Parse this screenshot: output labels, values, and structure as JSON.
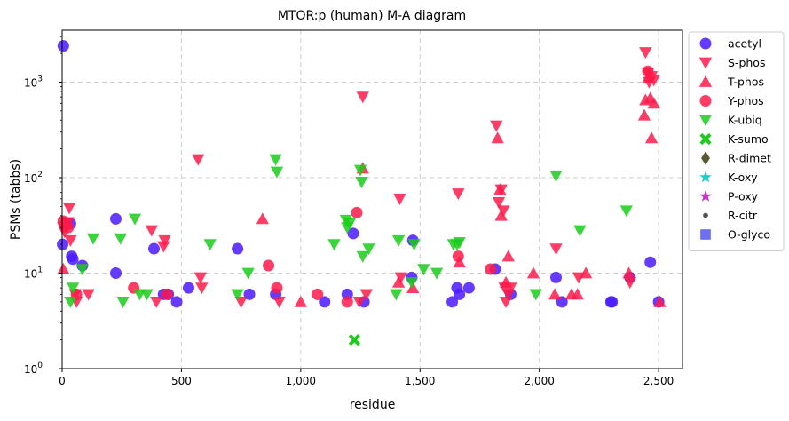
{
  "chart_data": {
    "type": "scatter",
    "title": "MTOR:p (human) M-A diagram",
    "xlabel": "residue",
    "ylabel": "PSMs (tabbs)",
    "xlim": [
      0,
      2600
    ],
    "ylim": [
      1,
      3500
    ],
    "yscale": "log",
    "grid": true,
    "legend_position": "outside-right",
    "x_ticks": [
      {
        "value": 0,
        "label": "0"
      },
      {
        "value": 500,
        "label": "500"
      },
      {
        "value": 1000,
        "label": "1,000"
      },
      {
        "value": 1500,
        "label": "1,500"
      },
      {
        "value": 2000,
        "label": "2,000"
      },
      {
        "value": 2500,
        "label": "2,500"
      }
    ],
    "y_ticks": [
      {
        "value": 1,
        "base": "10",
        "exp": "0"
      },
      {
        "value": 10,
        "base": "10",
        "exp": "1"
      },
      {
        "value": 100,
        "base": "10",
        "exp": "2"
      },
      {
        "value": 1000,
        "base": "10",
        "exp": "3"
      }
    ],
    "series": [
      {
        "name": "acetyl",
        "marker": "circle",
        "color": "#4a1aff",
        "points": [
          [
            5,
            2400
          ],
          [
            2,
            20
          ],
          [
            35,
            33
          ],
          [
            40,
            15
          ],
          [
            45,
            14
          ],
          [
            85,
            12
          ],
          [
            225,
            37
          ],
          [
            225,
            10
          ],
          [
            385,
            18
          ],
          [
            425,
            6
          ],
          [
            445,
            6
          ],
          [
            480,
            5
          ],
          [
            530,
            7
          ],
          [
            735,
            18
          ],
          [
            785,
            6
          ],
          [
            895,
            6
          ],
          [
            1100,
            5
          ],
          [
            1195,
            6
          ],
          [
            1220,
            26
          ],
          [
            1265,
            5
          ],
          [
            1470,
            22
          ],
          [
            1465,
            9
          ],
          [
            1635,
            5
          ],
          [
            1655,
            7
          ],
          [
            1665,
            6
          ],
          [
            1705,
            7
          ],
          [
            1815,
            11
          ],
          [
            1880,
            6
          ],
          [
            2070,
            9
          ],
          [
            2095,
            5
          ],
          [
            2300,
            5
          ],
          [
            2305,
            5
          ],
          [
            2380,
            9
          ],
          [
            2465,
            13
          ],
          [
            2500,
            5
          ]
        ]
      },
      {
        "name": "S-phos",
        "marker": "triangle-down",
        "color": "#ff1a4a",
        "points": [
          [
            5,
            30
          ],
          [
            10,
            27
          ],
          [
            25,
            34
          ],
          [
            30,
            48
          ],
          [
            35,
            22
          ],
          [
            55,
            6
          ],
          [
            60,
            5
          ],
          [
            110,
            6
          ],
          [
            375,
            28
          ],
          [
            395,
            5
          ],
          [
            425,
            19
          ],
          [
            430,
            22
          ],
          [
            570,
            155
          ],
          [
            580,
            9
          ],
          [
            585,
            7
          ],
          [
            750,
            5
          ],
          [
            910,
            5
          ],
          [
            1245,
            5
          ],
          [
            1260,
            700
          ],
          [
            1275,
            6
          ],
          [
            1415,
            60
          ],
          [
            1420,
            9
          ],
          [
            1660,
            68
          ],
          [
            1820,
            350
          ],
          [
            1830,
            55
          ],
          [
            1840,
            75
          ],
          [
            1850,
            45
          ],
          [
            1855,
            7
          ],
          [
            1860,
            5
          ],
          [
            1870,
            6
          ],
          [
            1880,
            7
          ],
          [
            2070,
            18
          ],
          [
            2165,
            9
          ],
          [
            2380,
            8
          ],
          [
            2445,
            2050
          ],
          [
            2455,
            1250
          ],
          [
            2460,
            1000
          ],
          [
            2470,
            1150
          ],
          [
            2480,
            1050
          ]
        ]
      },
      {
        "name": "T-phos",
        "marker": "triangle-up",
        "color": "#ff1a4a",
        "points": [
          [
            5,
            11
          ],
          [
            840,
            37
          ],
          [
            1000,
            5
          ],
          [
            1260,
            125
          ],
          [
            1410,
            8
          ],
          [
            1470,
            7
          ],
          [
            1665,
            13
          ],
          [
            1825,
            260
          ],
          [
            1835,
            75
          ],
          [
            1840,
            40
          ],
          [
            1860,
            8
          ],
          [
            1870,
            15
          ],
          [
            1975,
            10
          ],
          [
            2065,
            6
          ],
          [
            2135,
            6
          ],
          [
            2160,
            6
          ],
          [
            2195,
            10
          ],
          [
            2375,
            10
          ],
          [
            2440,
            450
          ],
          [
            2445,
            650
          ],
          [
            2455,
            1100
          ],
          [
            2465,
            680
          ],
          [
            2470,
            260
          ],
          [
            2480,
            600
          ],
          [
            2505,
            5
          ]
        ]
      },
      {
        "name": "Y-phos",
        "marker": "circle",
        "color": "#ff1a4a",
        "points": [
          [
            5,
            35
          ],
          [
            15,
            33
          ],
          [
            25,
            30
          ],
          [
            60,
            6
          ],
          [
            300,
            7
          ],
          [
            440,
            6
          ],
          [
            865,
            12
          ],
          [
            900,
            7
          ],
          [
            1070,
            6
          ],
          [
            1195,
            5
          ],
          [
            1235,
            43
          ],
          [
            1660,
            15
          ],
          [
            1795,
            11
          ],
          [
            2455,
            1300
          ]
        ]
      },
      {
        "name": "K-ubiq",
        "marker": "triangle-down",
        "color": "#1acc1a",
        "points": [
          [
            35,
            5
          ],
          [
            45,
            7
          ],
          [
            85,
            11
          ],
          [
            130,
            23
          ],
          [
            245,
            23
          ],
          [
            255,
            5
          ],
          [
            305,
            37
          ],
          [
            325,
            6
          ],
          [
            355,
            6
          ],
          [
            620,
            20
          ],
          [
            735,
            6
          ],
          [
            780,
            10
          ],
          [
            895,
            155
          ],
          [
            900,
            115
          ],
          [
            1140,
            20
          ],
          [
            1190,
            36
          ],
          [
            1195,
            30
          ],
          [
            1205,
            33
          ],
          [
            1250,
            120
          ],
          [
            1255,
            90
          ],
          [
            1260,
            15
          ],
          [
            1285,
            18
          ],
          [
            1410,
            22
          ],
          [
            1400,
            6
          ],
          [
            1465,
            8
          ],
          [
            1475,
            20
          ],
          [
            1515,
            11
          ],
          [
            1570,
            10
          ],
          [
            1640,
            20
          ],
          [
            1655,
            20
          ],
          [
            1665,
            21
          ],
          [
            1985,
            6
          ],
          [
            2070,
            105
          ],
          [
            2170,
            28
          ],
          [
            2365,
            45
          ]
        ]
      },
      {
        "name": "K-sumo",
        "marker": "x",
        "color": "#1acc1a",
        "points": [
          [
            1225,
            2
          ]
        ]
      },
      {
        "name": "R-dimet",
        "marker": "diamond",
        "color": "#595933",
        "points": []
      },
      {
        "name": "K-oxy",
        "marker": "star",
        "color": "#1acccc",
        "points": []
      },
      {
        "name": "P-oxy",
        "marker": "star",
        "color": "#cc33cc",
        "points": []
      },
      {
        "name": "R-citr",
        "marker": "dot",
        "color": "#555555",
        "points": []
      },
      {
        "name": "O-glyco",
        "marker": "square",
        "color": "#5757e6",
        "points": []
      }
    ]
  }
}
